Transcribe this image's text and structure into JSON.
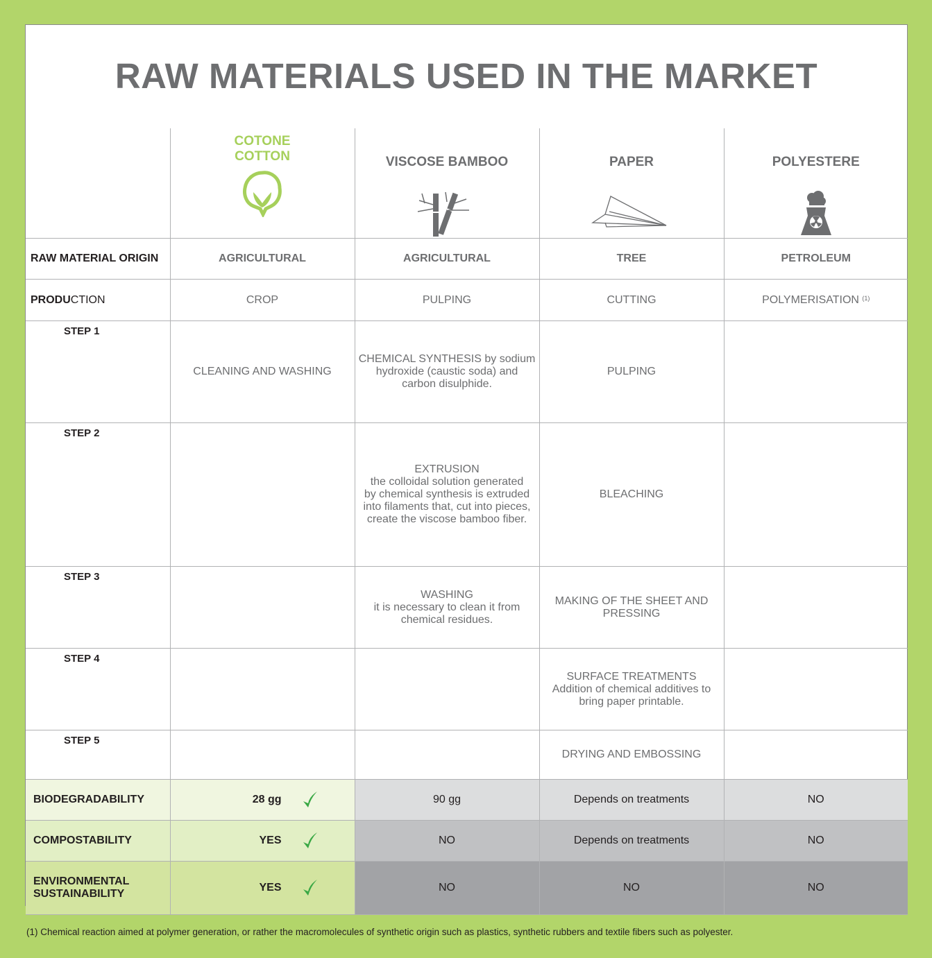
{
  "title": "RAW MATERIALS USED IN THE MARKET",
  "colors": {
    "background": "#b2d56a",
    "accent_green": "#a6d05b",
    "check_green": "#3aa845",
    "text_gray": "#6d6e70"
  },
  "columns": [
    {
      "name_line1": "COTONE",
      "name_line2": "COTTON",
      "icon": "cotton-icon"
    },
    {
      "name_line1": "VISCOSE BAMBOO",
      "icon": "bamboo-icon"
    },
    {
      "name_line1": "PAPER",
      "icon": "paper-plane-icon"
    },
    {
      "name_line1": "POLYESTERE",
      "icon": "nuclear-plant-icon"
    }
  ],
  "origin": {
    "label": "RAW MATERIAL ORIGIN",
    "values": [
      "AGRICULTURAL",
      "AGRICULTURAL",
      "TREE",
      "PETROLEUM"
    ]
  },
  "production": {
    "label_bold": "PRODU",
    "label_rest": "CTION",
    "values": [
      "CROP",
      "PULPING",
      "CUTTING",
      "POLYMERISATION"
    ],
    "footnote_ref": "(1)"
  },
  "steps": [
    {
      "label": "STEP 1",
      "values": [
        [
          "CLEANING AND WASHING"
        ],
        [
          "CHEMICAL SYNTHESIS by sodium",
          "hydroxide (caustic soda) and",
          "carbon disulphide."
        ],
        [
          "PULPING"
        ],
        []
      ]
    },
    {
      "label": "STEP 2",
      "values": [
        [],
        [
          "EXTRUSION",
          "the colloidal solution generated",
          "by chemical synthesis is extruded",
          "into filaments that, cut into pieces,",
          "create the viscose bamboo fiber."
        ],
        [
          "BLEACHING"
        ],
        []
      ]
    },
    {
      "label": "STEP 3",
      "values": [
        [],
        [
          "WASHING",
          "it is necessary to clean it from",
          "chemical residues."
        ],
        [
          "MAKING OF THE SHEET AND",
          "PRESSING"
        ],
        []
      ]
    },
    {
      "label": "STEP 4",
      "values": [
        [],
        [],
        [
          "SURFACE TREATMENTS",
          "Addition of chemical additives to",
          "bring paper printable."
        ],
        []
      ]
    },
    {
      "label": "STEP 5",
      "values": [
        [],
        [],
        [
          "DRYING AND EMBOSSING"
        ],
        []
      ]
    }
  ],
  "properties": [
    {
      "label": [
        "BIODEGRADABILITY"
      ],
      "cotton": "28 gg",
      "check": true,
      "values": [
        "90 gg",
        "Depends on treatments",
        "NO"
      ],
      "label_bg": "#f0f6e0",
      "gray_bg": "#dcddde"
    },
    {
      "label": [
        "COMPOSTABILITY"
      ],
      "cotton": "YES",
      "check": true,
      "values": [
        "NO",
        "Depends on treatments",
        "NO"
      ],
      "label_bg": "#e2efc5",
      "gray_bg": "#c0c1c3"
    },
    {
      "label": [
        "ENVIRONMENTAL",
        "SUSTAINABILITY"
      ],
      "cotton": "YES",
      "check": true,
      "values": [
        "NO",
        "NO",
        "NO"
      ],
      "label_bg": "#d3e4a0",
      "gray_bg": "#a2a3a6"
    }
  ],
  "footnote": "(1) Chemical reaction aimed at polymer generation, or rather the macromolecules of synthetic origin such as plastics, synthetic rubbers and textile fibers such as polyester."
}
